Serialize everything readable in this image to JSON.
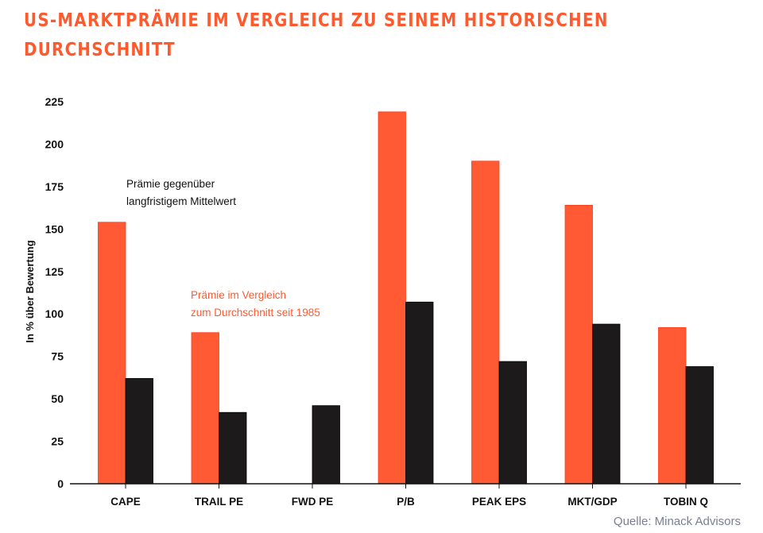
{
  "chart_data": {
    "type": "bar",
    "title": "US-MARKTPRÄMIE IM VERGLEICH ZU SEINEM HISTORISCHEN DURCHSCHNITT",
    "xlabel": "",
    "ylabel": "In % über Bewertung",
    "ylim": [
      0,
      225
    ],
    "yticks": [
      0,
      25,
      50,
      75,
      100,
      125,
      150,
      175,
      200,
      225
    ],
    "categories": [
      "CAPE",
      "TRAIL PE",
      "FWD PE",
      "P/B",
      "PEAK EPS",
      "MKT/GDP",
      "TOBIN Q"
    ],
    "series": [
      {
        "name": "Prämie im Vergleich zum Durchschnitt seit 1985",
        "color": "#ff5a33",
        "values": [
          154,
          89,
          null,
          219,
          190,
          164,
          92
        ]
      },
      {
        "name": "Prämie gegenüber langfristigem Mittelwert",
        "color": "#1c1a1a",
        "values": [
          62,
          42,
          46,
          107,
          72,
          94,
          69
        ]
      }
    ],
    "annotations": [
      {
        "lines": [
          "Prämie gegenüber",
          "langfristigem Mittelwert"
        ],
        "color": "#111111"
      },
      {
        "lines": [
          "Prämie im Vergleich",
          "zum Durchschnitt seit 1985"
        ],
        "color": "#ff5a2e"
      }
    ],
    "grid": false,
    "legend": "none",
    "source": "Quelle: Minack Advisors"
  }
}
